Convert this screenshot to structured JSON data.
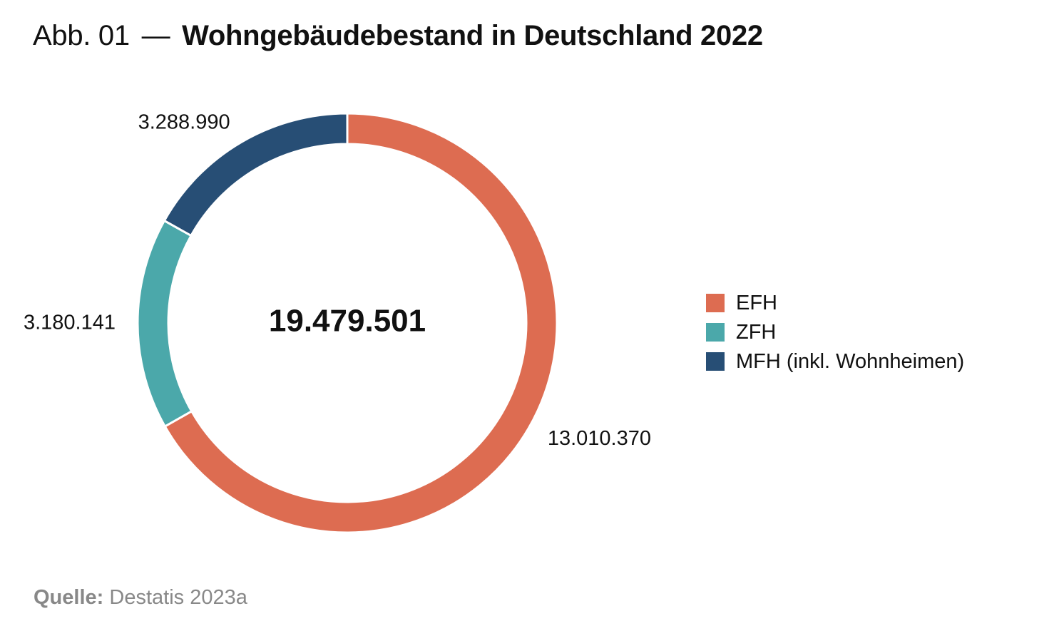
{
  "header": {
    "prefix": "Abb. 01",
    "separator": "—",
    "title": "Wohngebäudebestand in Deutschland 2022"
  },
  "chart_data": {
    "type": "pie",
    "variant": "donut",
    "title": "Wohngebäudebestand in Deutschland 2022",
    "center_label": "19.479.501",
    "total": 19479501,
    "categories": [
      "EFH",
      "ZFH",
      "MFH (inkl. Wohnheimen)"
    ],
    "values": [
      13010370,
      3180141,
      3288990
    ],
    "value_labels": [
      "13.010.370",
      "3.180.141",
      "3.288.990"
    ],
    "colors": [
      "#DD6C51",
      "#4BA8AA",
      "#274E75"
    ],
    "start": "12 o'clock, clockwise",
    "legend_placement": "right"
  },
  "legend": {
    "items": [
      {
        "label": "EFH",
        "color": "#DD6C51"
      },
      {
        "label": "ZFH",
        "color": "#4BA8AA"
      },
      {
        "label": "MFH (inkl. Wohnheimen)",
        "color": "#274E75"
      }
    ]
  },
  "source": {
    "label": "Quelle:",
    "text": "Destatis 2023a"
  }
}
